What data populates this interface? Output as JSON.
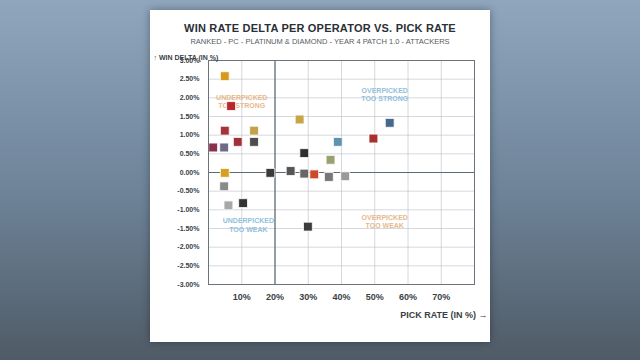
{
  "chart_data": {
    "type": "scatter",
    "title": "WIN RATE DELTA PER OPERATOR VS. PICK RATE",
    "subtitle": "RANKED - PC - PLATINUM & DIAMOND - YEAR 4 PATCH 1.0 - ATTACKERS",
    "xlabel": "PICK RATE (IN %)",
    "ylabel": "WIN DELTA (IN %)",
    "x": [
      4.9,
      6.8,
      4.9,
      13.7,
      27.4,
      13.7,
      8.8,
      1.4,
      4.7,
      38.9,
      49.6,
      54.5,
      28.8,
      36.7,
      4.9,
      4.7,
      18.6,
      24.7,
      28.8,
      31.8,
      36.2,
      41.1,
      10.4,
      6.0,
      29.9
    ],
    "values": [
      2.58,
      1.78,
      1.12,
      1.12,
      1.42,
      0.82,
      0.82,
      0.67,
      0.67,
      0.82,
      0.91,
      1.33,
      0.52,
      0.34,
      -0.01,
      -0.37,
      -0.01,
      0.04,
      -0.03,
      -0.05,
      -0.12,
      -0.1,
      -0.82,
      -0.88,
      -1.45
    ],
    "colors": [
      "#d89a1c",
      "#b8262c",
      "#a8323a",
      "#c4a24a",
      "#c9a548",
      "#4d4d4d",
      "#a0303a",
      "#8c2f4e",
      "#6f6a86",
      "#5f93ad",
      "#a83030",
      "#46688a",
      "#2f2f2f",
      "#9aa070",
      "#d8a020",
      "#8a8a8a",
      "#3a3a3a",
      "#555555",
      "#666666",
      "#cc4a2a",
      "#777777",
      "#9a9a9a",
      "#333333",
      "#a8a8a8",
      "#3c3c3c"
    ],
    "marker": "square",
    "xlim": [
      0,
      80
    ],
    "xticks": [
      {
        "value": 10,
        "label": "10%"
      },
      {
        "value": 20,
        "label": "20%"
      },
      {
        "value": 30,
        "label": "30%"
      },
      {
        "value": 40,
        "label": "40%"
      },
      {
        "value": 50,
        "label": "50%"
      },
      {
        "value": 60,
        "label": "60%"
      },
      {
        "value": 70,
        "label": "70%"
      }
    ],
    "ylim": [
      -3,
      3
    ],
    "yticks": [
      {
        "value": 3,
        "label": "3.00%"
      },
      {
        "value": 2.5,
        "label": "2.50%"
      },
      {
        "value": 2,
        "label": "2.00%"
      },
      {
        "value": 1.5,
        "label": "1.50%"
      },
      {
        "value": 1,
        "label": "1.00%"
      },
      {
        "value": 0.5,
        "label": "0.50%"
      },
      {
        "value": 0,
        "label": "0.00%"
      },
      {
        "value": -0.5,
        "label": "-0.50%"
      },
      {
        "value": -1,
        "label": "-1.00%"
      },
      {
        "value": -1.5,
        "label": "-1.50%"
      },
      {
        "value": -2,
        "label": "-2.00%"
      },
      {
        "value": -2.5,
        "label": "-2.50%"
      },
      {
        "value": -3,
        "label": "-3.00%"
      }
    ],
    "grid": true,
    "dividers": {
      "x": 20,
      "y": 0
    },
    "annotations": [
      {
        "text": "UNDERPICKED\nTOO STRONG",
        "x": 10,
        "y": 1.9,
        "color": "#e6b98c"
      },
      {
        "text": "OVERPICKED\nTOO STRONG",
        "x": 53,
        "y": 2.1,
        "color": "#93bfdc"
      },
      {
        "text": "UNDERPICKED\nTOO WEAK",
        "x": 12,
        "y": -1.4,
        "color": "#93bfdc"
      },
      {
        "text": "OVERPICKED\nTOO WEAK",
        "x": 53,
        "y": -1.3,
        "color": "#e6b98c"
      }
    ]
  }
}
